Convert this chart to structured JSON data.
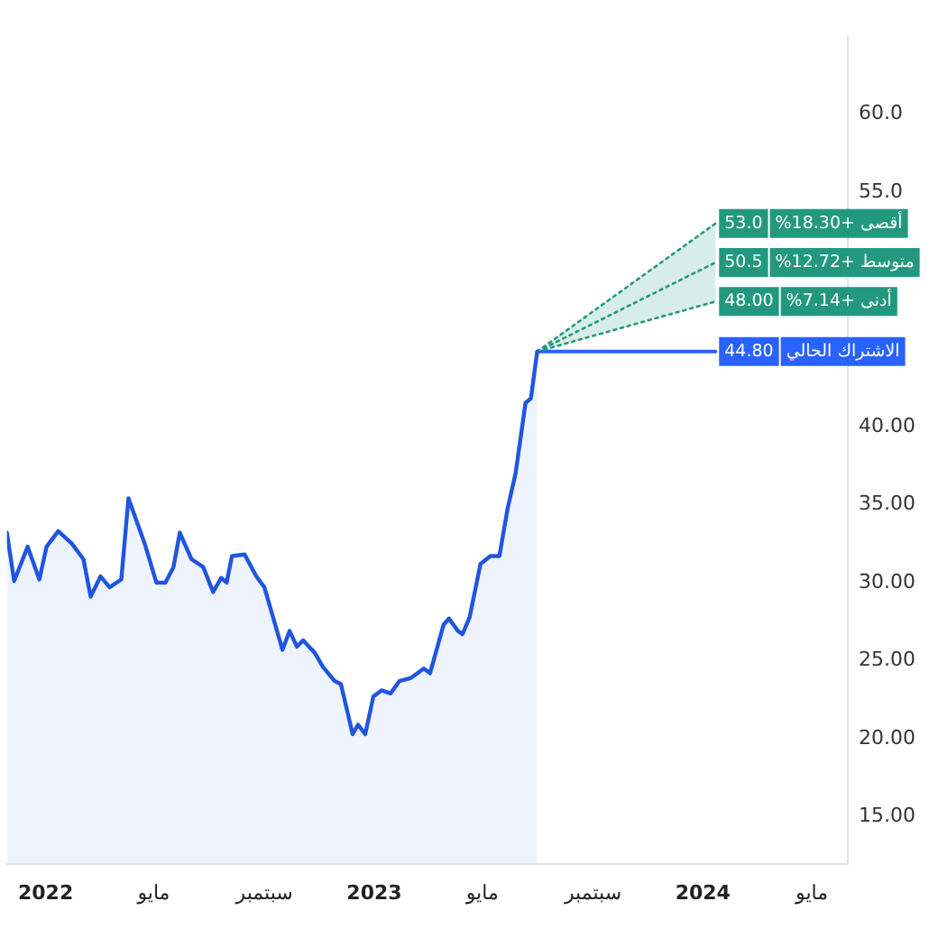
{
  "chart_data": {
    "type": "area",
    "xlim": [
      "2021-11-19",
      "2024-06-10"
    ],
    "xticks": [
      {
        "value": "2022-01-01",
        "label": "2022"
      },
      {
        "value": "2022-05-01",
        "label": "مايو"
      },
      {
        "value": "2022-09-01",
        "label": "سبتمبر"
      },
      {
        "value": "2023-01-01",
        "label": "2023"
      },
      {
        "value": "2023-05-01",
        "label": "مايو"
      },
      {
        "value": "2023-09-01",
        "label": "سبتمبر"
      },
      {
        "value": "2024-01-01",
        "label": "2024"
      },
      {
        "value": "2024-05-01",
        "label": "مايو"
      }
    ],
    "ylim": [
      12,
      65
    ],
    "yticks": [
      {
        "value": 15,
        "label": "15.00"
      },
      {
        "value": 20,
        "label": "20.00"
      },
      {
        "value": 25,
        "label": "25.00"
      },
      {
        "value": 30,
        "label": "30.00"
      },
      {
        "value": 35,
        "label": "35.00"
      },
      {
        "value": 40,
        "label": "40.00"
      },
      {
        "value": 55,
        "label": "55.0"
      },
      {
        "value": 60,
        "label": "60.0"
      }
    ],
    "grid": false,
    "legend": "right",
    "series": [
      {
        "type": "area",
        "color": "#1f55e0",
        "x": [
          "2021-11-19",
          "2021-11-27",
          "2021-12-12",
          "2021-12-25",
          "2022-01-02",
          "2022-01-15",
          "2022-01-30",
          "2022-02-12",
          "2022-02-20",
          "2022-03-03",
          "2022-03-13",
          "2022-03-26",
          "2022-04-03",
          "2022-04-21",
          "2022-05-04",
          "2022-05-14",
          "2022-05-23",
          "2022-05-30",
          "2022-06-12",
          "2022-06-25",
          "2022-07-06",
          "2022-07-15",
          "2022-07-21",
          "2022-07-27",
          "2022-08-10",
          "2022-08-23",
          "2022-09-01",
          "2022-09-21",
          "2022-09-29",
          "2022-10-07",
          "2022-10-14",
          "2022-10-27",
          "2022-11-05",
          "2022-11-18",
          "2022-11-25",
          "2022-12-08",
          "2022-12-14",
          "2022-12-22",
          "2022-12-31",
          "2023-01-09",
          "2023-01-19",
          "2023-01-29",
          "2023-02-11",
          "2023-02-25",
          "2023-03-04",
          "2023-03-19",
          "2023-03-25",
          "2023-04-04",
          "2023-04-09",
          "2023-04-17",
          "2023-04-29",
          "2023-05-10",
          "2023-05-20",
          "2023-05-29",
          "2023-06-07",
          "2023-06-18",
          "2023-06-24",
          "2023-07-01"
        ],
        "values": [
          33.2,
          30.1,
          32.3,
          30.2,
          32.3,
          33.3,
          32.5,
          31.5,
          29.1,
          30.4,
          29.7,
          30.2,
          35.4,
          32.5,
          30.0,
          30.0,
          31.0,
          33.2,
          31.5,
          31.0,
          29.4,
          30.3,
          30.0,
          31.7,
          31.8,
          30.4,
          29.7,
          25.7,
          26.9,
          25.9,
          26.3,
          25.5,
          24.6,
          23.7,
          23.5,
          20.3,
          20.9,
          20.3,
          22.7,
          23.1,
          22.9,
          23.7,
          23.9,
          24.5,
          24.2,
          27.3,
          27.7,
          26.9,
          26.7,
          27.8,
          31.2,
          31.7,
          31.7,
          34.7,
          37.0,
          41.5,
          41.8,
          44.8
        ]
      },
      {
        "type": "line",
        "name": "أقصى +18.30%",
        "color": "#22997e",
        "line_style": "dotted",
        "x": [
          "2023-07-01",
          "2024-01-15"
        ],
        "values": [
          44.8,
          53.0
        ],
        "value_labels": [
          null,
          "53.0"
        ]
      },
      {
        "type": "line",
        "name": "متوسط +12.72%",
        "color": "#22997e",
        "line_style": "dotted",
        "x": [
          "2023-07-01",
          "2024-01-15"
        ],
        "values": [
          44.8,
          50.5
        ],
        "value_labels": [
          null,
          "50.5"
        ],
        "lower": [
          44.8,
          48.0
        ],
        "upper": [
          44.8,
          53.0
        ]
      },
      {
        "type": "line",
        "name": "أدنى +7.14%",
        "color": "#22997e",
        "line_style": "dotted",
        "x": [
          "2023-07-01",
          "2024-01-15"
        ],
        "values": [
          44.8,
          48.0
        ],
        "value_labels": [
          null,
          "48.00"
        ]
      },
      {
        "type": "line",
        "name": "الاشتراك الحالي",
        "color": "#2962ff",
        "line_style": "solid",
        "x": [
          "2023-07-01",
          "2024-01-15"
        ],
        "values": [
          44.8,
          44.8
        ],
        "value_labels": [
          null,
          "44.80"
        ]
      }
    ]
  }
}
